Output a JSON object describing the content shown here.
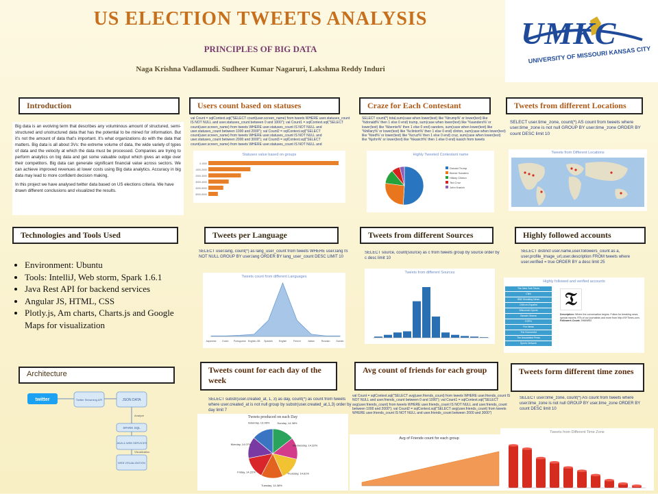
{
  "poster": {
    "title": "US ELECTION TWEETS ANALYSIS",
    "subtitle": "PRINCIPLES OF BIG DATA",
    "authors": "Naga Krishna Vadlamudi. Sudheer Kumar Nagaruri, Lakshma Reddy Induri",
    "logo": {
      "name": "UMKC",
      "sub": "UNIVERSITY OF MISSOURI KANSAS CITY"
    }
  },
  "sections": {
    "introduction": {
      "header": "Introduction",
      "text": "Big data is an evolving term that describes any voluminous amount of structured, semi-structured and unstructured data that has the potential to be mined for information. But it's not the amount of data that's important. It's what organizations do with the data that matters. Big data is all about 3Vs: the extreme volume of data, the wide variety of types of data and the velocity at which the data must be processed. Companies are trying to perform analytics on big data and get some valuable output which gives an edge over their competitors. Big data can generate significant financial value across sectors. We can achieve improved revenues at lower costs using Big data analytics. Accuracy in big data may lead to more confident decision making.",
      "text2": "In this project we have analysed twitter data based on US elections criteria. We have drawn different conclusions and visualized the results."
    },
    "users_count": {
      "header": "Users count based on statuses",
      "query": "val Count = sqlContext.sql(\"SELECT count(user.screen_name) from tweets WHERE user.statuses_count IS NOT NULL and user.statuses_count between 0 and 1000\"); val Count1 = sqlContext.sql(\"SELECT count(user.screen_name) from tweets WHERE user.statuses_count IS NOT NULL and user.statuses_count between 1000 and 2000\"); val Count2 = sqlContext.sql(\"SELECT count(user.screen_name) from tweets WHERE user.statuses_count IS NOT NULL and user.statuses_count between 2000 and 3000\"); val Count3 = sqlContext.sql(\"SELECT count(user.screen_name) from tweets WHERE user.statuses_count IS NOT NULL and user.statuses_count between 3000 and 4000\")",
      "chart_title": "Statuses value based on groups"
    },
    "craze": {
      "header": "Craze for Each Contestant",
      "query": "SELECT count(*) total,sum(case when lower(text) like '%trump%' or lower(text) like '%donald%' then 1 else 0 end) trump, sum(case when lower(text) like '%sanders%' or lower(text) like '%bernie%' then 1 else 0 end) sanders, sum(case when lower(text) like '%hillary%' or lower(text) like '%clinton%' then 1 else 0 end) clinton, sum(case when lower(text) like '%ted%' or lower(text) like '%cruz%' then 1 else 0 end) cruz, sum(case when lower(text) like '%john%' or lower(text) like '%kasich%' then 1 else 0 end) kasich from tweets",
      "chart_title": "Highly Tweeted Contestant name",
      "legend": [
        "Donald Trump",
        "Bernie Sanders",
        "Hillary Clinton",
        "Ted Cruz",
        "John Kasich"
      ]
    },
    "locations": {
      "header": "Tweets from different Locations",
      "query": "SELECT user.time_zone, count(*) AS count from tweets where user.time_zone is not null GROUP BY user.time_zone ORDER BY count DESC limit 10",
      "chart_title": "Tweets from Different Locations"
    },
    "technologies": {
      "header": "Technologies and Tools Used",
      "items": [
        "Environment:  Ubuntu",
        "Tools:  IntelliJ,  Web storm,  Spark 1.6.1",
        "Java Rest API for backend services",
        "Angular JS, HTML, CSS",
        "Plotly.js,  Am charts, Charts.js and Google  Maps for visualization"
      ]
    },
    "language": {
      "header": "Tweets per Language",
      "query": "SELECT user.lang, count(*) as lang_user_count from tweets WHERE user.lang IS NOT NULL GROUP BY user.lang ORDER BY lang_user_count DESC LIMIT 10",
      "chart_title": "Tweets count from different Languages",
      "x_labels": [
        "Japanese",
        "Dutch",
        "Portuguese",
        "English-GB",
        "Spanish",
        "English",
        "French",
        "Italian",
        "Russian",
        "Danish"
      ]
    },
    "sources": {
      "header": "Tweets from different Sources",
      "query": "SELECT source, count(source) as c from tweets group by source order by c desc limit 10",
      "chart_title": "Tweets from different Sources"
    },
    "followed": {
      "header": "Highly followed accounts",
      "query": "SELECT distinct user.name,user.followers_count as a, user.profile_image_url,user.description  FROM tweets where user.verified = true ORDER BY a desc limit 25",
      "chart_title": "Highly followed and verified accounts",
      "accounts": [
        "The New York Times",
        "CNN",
        "BBC Breaking News",
        "CNN en Español",
        "Wisconsin Sports",
        "Barack Obama",
        "ESPN",
        "Fox News",
        "The Economist",
        "The Associated Press",
        "Sports Network"
      ],
      "desc_label": "Description:",
      "desc": "Where the conversation begins. Follow for breaking news, special reports, RTs of our journalists and more from http://NYTimes.com.",
      "followers_label": "Followers Count:",
      "followers": "29669852"
    },
    "architecture": {
      "header": "Architecture",
      "nodes": [
        "twitter",
        "Twitter Streaming API",
        "JSON DATA",
        "SPARK SQL",
        "JAVA & WEB SERVICES",
        "WEB VISUALIZATION"
      ],
      "edge_labels": [
        "Analyze",
        "Visualization"
      ]
    },
    "day": {
      "header": "Tweets  count  for each day of the week",
      "query": "SELECT substr(user.created_at, 1, 3) as day, count(*) as count from tweets where user.created_at is not null group by substr(user.created_at,1,3) order by day limit 7",
      "chart_title": "Tweets produced on each Day",
      "labels": [
        "Sunday, 14.38%",
        "Wednesday, 14.32%",
        "Thursday, 14.61%",
        "Tuesday, 14.38%",
        "Friday, 14.22%",
        "Monday, 14.07%",
        "Saturday, 13.96%"
      ]
    },
    "friends": {
      "header": "Avg  count  of  friends  for  each group",
      "query": "val Count = sqlContext.sql(\"SELECT avg(user.friends_count) from tweets WHERE user.friends_count IS NOT NULL and user.friends_count between 0 and 1000\"); val Count1 = sqlContext.sql(\"SELECT avg(user.friends_count) from tweets WHERE user.friends_count IS NOT NULL and user.friends_count between 1000 and 2000\"); val Count2 = sqlContext.sql(\"SELECT avg(user.friends_count) from tweets WHERE user.friends_count IS NOT NULL and user.friends_count between 2000 and 3000\")",
      "chart_title": "Avg of Friends count for each group"
    },
    "timezones": {
      "header": "Tweets form different time zones",
      "query": "SELECT user.time_zone, count(*) AS count from tweets where user.time_zone is not null GROUP BY user.time_zone ORDER BY count DESC limit 10",
      "chart_title": "Tweets from Different Time Zone"
    }
  },
  "colors": {
    "title": "#c66f1d",
    "subtitle": "#7a3d6e",
    "background": "#fbf5d6",
    "header_text": "#b05a18",
    "query_text": "#243a80",
    "orange_bar": "#e8802a",
    "blue_bar": "#2a6fb2",
    "red_bar": "#d62b1f",
    "follow_blue": "#3d9fcf"
  },
  "chart_data": [
    {
      "type": "bar",
      "title": "Statuses value based on groups",
      "orientation": "horizontal",
      "categories": [
        "0-1000",
        "1000-2000",
        "2000-3000",
        "3000-4000",
        "4000-5000",
        "5000-6000"
      ],
      "values": [
        960,
        310,
        240,
        150,
        110,
        70
      ]
    },
    {
      "type": "pie",
      "title": "Highly Tweeted Contestant name",
      "labels": [
        "Donald Trump",
        "Bernie Sanders",
        "Hillary Clinton",
        "Ted Cruz",
        "John Kasich"
      ],
      "values": [
        51,
        26,
        12,
        7,
        4
      ],
      "colors": [
        "#2a75bf",
        "#e9761c",
        "#26a23a",
        "#d6231e",
        "#8e5fb5"
      ]
    },
    {
      "type": "area",
      "title": "Tweets count from different Languages",
      "categories": [
        "Japanese",
        "Dutch",
        "Portuguese",
        "English-GB",
        "Spanish",
        "English",
        "French",
        "Italian",
        "Russian",
        "Danish"
      ],
      "values": [
        1,
        1,
        2,
        4,
        30,
        100,
        30,
        4,
        1,
        1
      ]
    },
    {
      "type": "bar",
      "title": "Tweets from different Sources",
      "values": [
        2,
        5,
        9,
        11,
        62,
        86,
        36,
        9,
        5,
        3,
        2,
        1
      ]
    },
    {
      "type": "pie",
      "title": "Tweets produced on each Day",
      "labels": [
        "Sunday",
        "Wednesday",
        "Thursday",
        "Tuesday",
        "Friday",
        "Monday",
        "Saturday"
      ],
      "values": [
        14.38,
        14.32,
        14.61,
        14.38,
        14.22,
        14.07,
        13.96
      ],
      "colors": [
        "#2aa35d",
        "#d23c8a",
        "#f1c232",
        "#e3621f",
        "#d9262b",
        "#7a3aa3",
        "#3a75c4"
      ]
    },
    {
      "type": "area",
      "title": "Avg of Friends count for each group",
      "values": [
        10,
        20,
        30,
        40,
        50,
        60,
        70,
        80,
        90,
        100
      ]
    },
    {
      "type": "bar",
      "title": "Tweets from Different Time Zone",
      "values": [
        100,
        92,
        70,
        60,
        48,
        40,
        30,
        18,
        10,
        5
      ]
    }
  ]
}
